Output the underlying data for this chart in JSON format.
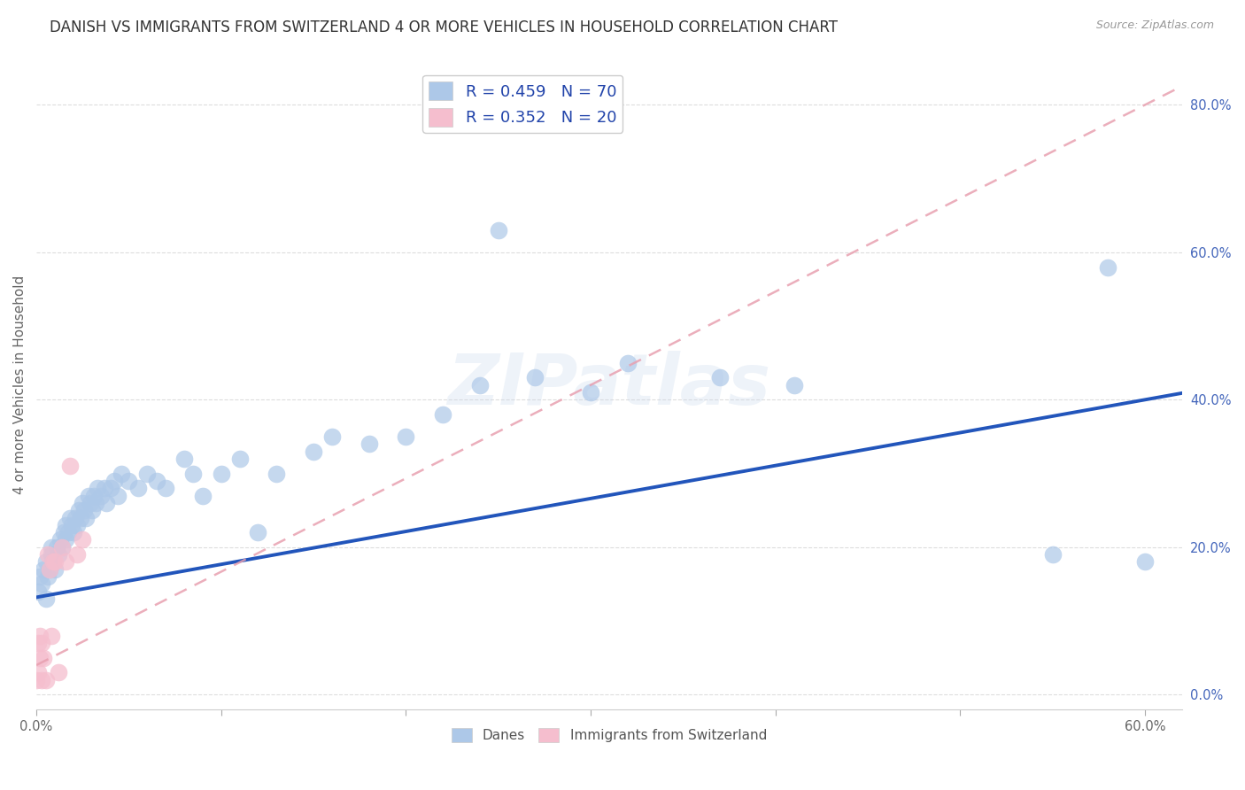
{
  "title": "DANISH VS IMMIGRANTS FROM SWITZERLAND 4 OR MORE VEHICLES IN HOUSEHOLD CORRELATION CHART",
  "source": "Source: ZipAtlas.com",
  "ylabel": "4 or more Vehicles in Household",
  "xlim": [
    0.0,
    0.62
  ],
  "ylim": [
    -0.02,
    0.86
  ],
  "xticks": [
    0.0,
    0.1,
    0.2,
    0.3,
    0.4,
    0.5,
    0.6
  ],
  "xticklabels": [
    "0.0%",
    "",
    "",
    "",
    "",
    "",
    "60.0%"
  ],
  "yticks_right": [
    0.0,
    0.2,
    0.4,
    0.6,
    0.8
  ],
  "yticklabels_right": [
    "0.0%",
    "20.0%",
    "40.0%",
    "60.0%",
    "80.0%"
  ],
  "legend_labels_upper": [
    "R = 0.459   N = 70",
    "R = 0.352   N = 20"
  ],
  "legend_colors": [
    "#adc8e8",
    "#f5bece"
  ],
  "danes_color": "#adc8e8",
  "swiss_color": "#f5bece",
  "trend_danes_color": "#2255bb",
  "trend_swiss_color": "#e8a0b0",
  "watermark": "ZIPatlas",
  "danes_x": [
    0.001,
    0.002,
    0.003,
    0.004,
    0.005,
    0.005,
    0.006,
    0.007,
    0.008,
    0.008,
    0.009,
    0.01,
    0.011,
    0.012,
    0.013,
    0.014,
    0.015,
    0.016,
    0.016,
    0.017,
    0.018,
    0.019,
    0.02,
    0.021,
    0.022,
    0.023,
    0.024,
    0.025,
    0.026,
    0.027,
    0.028,
    0.029,
    0.03,
    0.031,
    0.032,
    0.033,
    0.035,
    0.037,
    0.038,
    0.04,
    0.042,
    0.044,
    0.046,
    0.05,
    0.055,
    0.06,
    0.065,
    0.07,
    0.08,
    0.085,
    0.09,
    0.1,
    0.11,
    0.12,
    0.13,
    0.15,
    0.16,
    0.18,
    0.2,
    0.22,
    0.24,
    0.27,
    0.3,
    0.32,
    0.37,
    0.41,
    0.25,
    0.55,
    0.58,
    0.6
  ],
  "danes_y": [
    0.14,
    0.16,
    0.15,
    0.17,
    0.13,
    0.18,
    0.16,
    0.17,
    0.19,
    0.2,
    0.18,
    0.17,
    0.2,
    0.19,
    0.21,
    0.2,
    0.22,
    0.21,
    0.23,
    0.22,
    0.24,
    0.23,
    0.22,
    0.24,
    0.23,
    0.25,
    0.24,
    0.26,
    0.25,
    0.24,
    0.27,
    0.26,
    0.25,
    0.27,
    0.26,
    0.28,
    0.27,
    0.28,
    0.26,
    0.28,
    0.29,
    0.27,
    0.3,
    0.29,
    0.28,
    0.3,
    0.29,
    0.28,
    0.32,
    0.3,
    0.27,
    0.3,
    0.32,
    0.22,
    0.3,
    0.33,
    0.35,
    0.34,
    0.35,
    0.38,
    0.42,
    0.43,
    0.41,
    0.45,
    0.43,
    0.42,
    0.63,
    0.19,
    0.58,
    0.18
  ],
  "swiss_x": [
    0.0,
    0.001,
    0.001,
    0.002,
    0.002,
    0.003,
    0.003,
    0.004,
    0.005,
    0.006,
    0.007,
    0.008,
    0.009,
    0.01,
    0.012,
    0.014,
    0.016,
    0.018,
    0.022,
    0.025
  ],
  "swiss_y": [
    0.02,
    0.03,
    0.07,
    0.05,
    0.08,
    0.02,
    0.07,
    0.05,
    0.02,
    0.19,
    0.17,
    0.08,
    0.18,
    0.18,
    0.03,
    0.2,
    0.18,
    0.31,
    0.19,
    0.21
  ],
  "title_fontsize": 12,
  "axis_label_fontsize": 11,
  "tick_fontsize": 10.5
}
